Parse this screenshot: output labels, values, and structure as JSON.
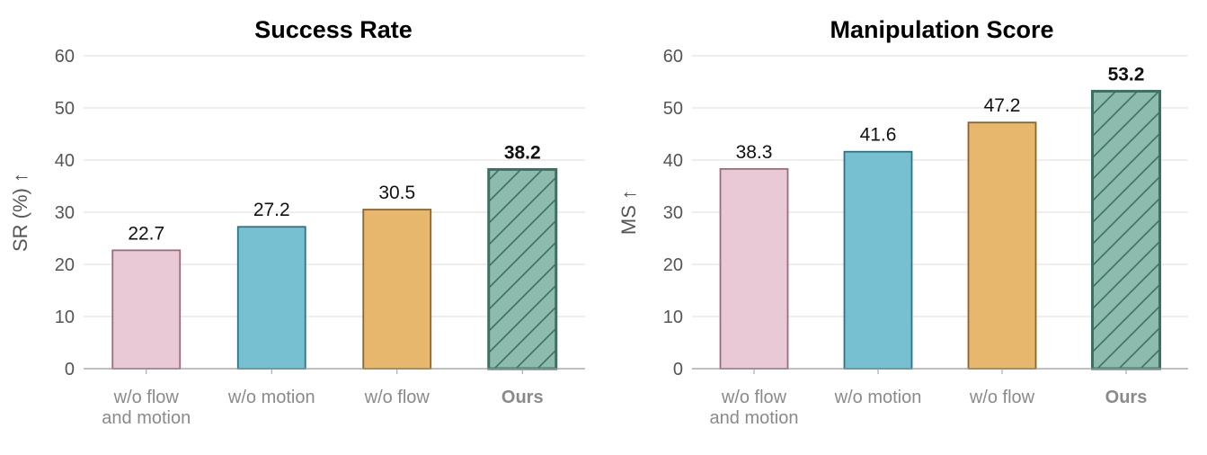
{
  "chart_data": [
    {
      "type": "bar",
      "title": "Success Rate",
      "ylabel": "SR (%) ↑",
      "categories": [
        "w/o flow and motion",
        "w/o motion",
        "w/o flow",
        "Ours"
      ],
      "category_lines": [
        [
          "w/o flow",
          "and motion"
        ],
        [
          "w/o motion"
        ],
        [
          "w/o flow"
        ],
        [
          "Ours"
        ]
      ],
      "values": [
        22.7,
        27.2,
        30.5,
        38.2
      ],
      "value_labels": [
        "22.7",
        "27.2",
        "30.5",
        "38.2"
      ],
      "highlight_index": 3,
      "ylim": [
        0,
        60
      ],
      "yticks": [
        "0",
        "10",
        "20",
        "30",
        "40",
        "50",
        "60"
      ],
      "grid": true
    },
    {
      "type": "bar",
      "title": "Manipulation Score",
      "ylabel": "MS ↑",
      "categories": [
        "w/o flow and motion",
        "w/o motion",
        "w/o flow",
        "Ours"
      ],
      "category_lines": [
        [
          "w/o flow",
          "and motion"
        ],
        [
          "w/o motion"
        ],
        [
          "w/o flow"
        ],
        [
          "Ours"
        ]
      ],
      "values": [
        38.3,
        41.6,
        47.2,
        53.2
      ],
      "value_labels": [
        "38.3",
        "41.6",
        "47.2",
        "53.2"
      ],
      "highlight_index": 3,
      "ylim": [
        0,
        60
      ],
      "yticks": [
        "0",
        "10",
        "20",
        "30",
        "40",
        "50",
        "60"
      ],
      "grid": true
    }
  ],
  "colors": {
    "bar_fills": [
      "#e8c9d5",
      "#77c0d1",
      "#e8b76e",
      "#8dbcae"
    ],
    "bar_strokes": [
      "#9c6b80",
      "#2f7284",
      "#8a6428",
      "#3d6f63"
    ],
    "hatch": "#3d6f63"
  }
}
